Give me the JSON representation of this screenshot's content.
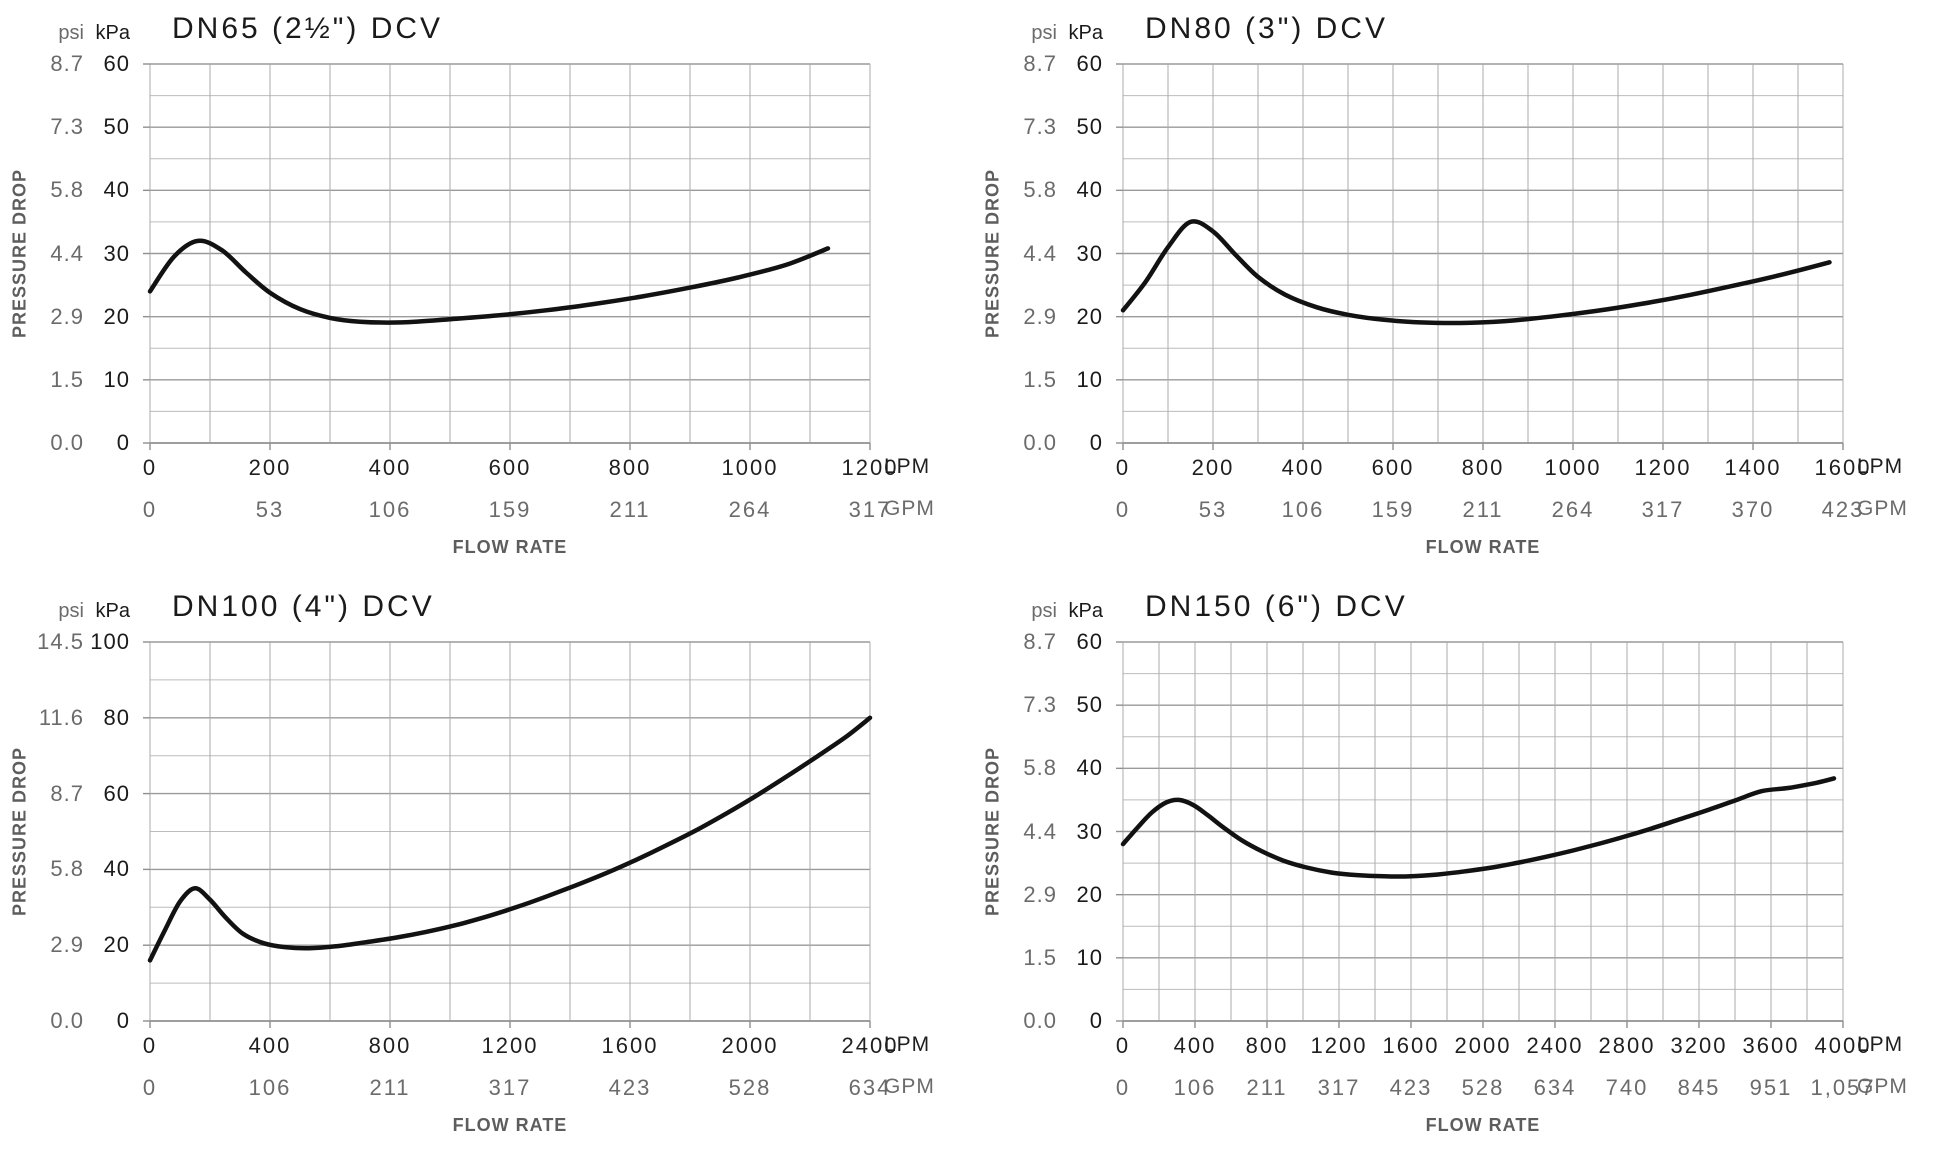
{
  "labels": {
    "psi_header": "psi",
    "kpa_header": "kPa",
    "lpm_unit": "LPM",
    "gpm_unit": "GPM",
    "flow_rate": "FLOW RATE",
    "pressure_drop": "PRESSURE DROP"
  },
  "colors": {
    "background": "#ffffff",
    "curve": "#121212",
    "grid_major": "#9a9a9a",
    "grid_minor": "#bcbcbc",
    "grid_vertical": "#ababab",
    "axis_line": "#8f8f8f",
    "text_dark": "#1a1a1a",
    "text_gray": "#6b6b6b"
  },
  "chart_data": [
    {
      "type": "line",
      "title": "DN65 (2½\") DCV",
      "xlabel": "FLOW RATE",
      "ylabel": "PRESSURE DROP",
      "y_axis": {
        "psi_ticks": [
          "8.7",
          "7.3",
          "5.8",
          "4.4",
          "2.9",
          "1.5",
          "0.0"
        ],
        "kpa_ticks": [
          "60",
          "50",
          "40",
          "30",
          "20",
          "10",
          "0"
        ],
        "kpa_max": 60,
        "kpa_major_step": 10,
        "kpa_minor_step": 5
      },
      "x_axis": {
        "lpm_ticks": [
          0,
          200,
          400,
          600,
          800,
          1000,
          1200
        ],
        "gpm_ticks": [
          "0",
          "53",
          "106",
          "159",
          "211",
          "264",
          "317"
        ],
        "lpm_max": 1200,
        "lpm_minor_step": 100
      },
      "series_lpm_kpa": [
        [
          0,
          24
        ],
        [
          40,
          29.5
        ],
        [
          80,
          32
        ],
        [
          120,
          30.5
        ],
        [
          160,
          27
        ],
        [
          200,
          23.8
        ],
        [
          250,
          21.2
        ],
        [
          300,
          19.8
        ],
        [
          350,
          19.2
        ],
        [
          420,
          19.1
        ],
        [
          500,
          19.6
        ],
        [
          580,
          20.2
        ],
        [
          660,
          21
        ],
        [
          740,
          22
        ],
        [
          820,
          23.2
        ],
        [
          900,
          24.6
        ],
        [
          980,
          26.2
        ],
        [
          1060,
          28.2
        ],
        [
          1130,
          30.8
        ]
      ]
    },
    {
      "type": "line",
      "title": "DN80 (3\") DCV",
      "xlabel": "FLOW RATE",
      "ylabel": "PRESSURE DROP",
      "y_axis": {
        "psi_ticks": [
          "8.7",
          "7.3",
          "5.8",
          "4.4",
          "2.9",
          "1.5",
          "0.0"
        ],
        "kpa_ticks": [
          "60",
          "50",
          "40",
          "30",
          "20",
          "10",
          "0"
        ],
        "kpa_max": 60,
        "kpa_major_step": 10,
        "kpa_minor_step": 5
      },
      "x_axis": {
        "lpm_ticks": [
          0,
          200,
          400,
          600,
          800,
          1000,
          1200,
          1400,
          1600
        ],
        "gpm_ticks": [
          "0",
          "53",
          "106",
          "159",
          "211",
          "264",
          "317",
          "370",
          "423"
        ],
        "lpm_max": 1600,
        "lpm_minor_step": 100
      },
      "series_lpm_kpa": [
        [
          0,
          21
        ],
        [
          50,
          25.5
        ],
        [
          100,
          31
        ],
        [
          150,
          35
        ],
        [
          200,
          33.5
        ],
        [
          250,
          29.8
        ],
        [
          300,
          26.3
        ],
        [
          360,
          23.5
        ],
        [
          430,
          21.5
        ],
        [
          500,
          20.3
        ],
        [
          580,
          19.5
        ],
        [
          660,
          19.1
        ],
        [
          750,
          19
        ],
        [
          850,
          19.3
        ],
        [
          950,
          20
        ],
        [
          1050,
          20.9
        ],
        [
          1150,
          22
        ],
        [
          1250,
          23.3
        ],
        [
          1350,
          24.8
        ],
        [
          1450,
          26.4
        ],
        [
          1570,
          28.6
        ]
      ]
    },
    {
      "type": "line",
      "title": "DN100 (4\") DCV",
      "xlabel": "FLOW RATE",
      "ylabel": "PRESSURE DROP",
      "y_axis": {
        "psi_ticks": [
          "14.5",
          "11.6",
          "8.7",
          "5.8",
          "2.9",
          "0.0"
        ],
        "kpa_ticks": [
          "100",
          "80",
          "60",
          "40",
          "20",
          "0"
        ],
        "kpa_max": 100,
        "kpa_major_step": 20,
        "kpa_minor_step": 10
      },
      "x_axis": {
        "lpm_ticks": [
          0,
          400,
          800,
          1200,
          1600,
          2000,
          2400
        ],
        "gpm_ticks": [
          "0",
          "106",
          "211",
          "317",
          "423",
          "528",
          "634"
        ],
        "lpm_max": 2400,
        "lpm_minor_step": 200
      },
      "series_lpm_kpa": [
        [
          0,
          16
        ],
        [
          50,
          24
        ],
        [
          100,
          31.5
        ],
        [
          150,
          35
        ],
        [
          200,
          32
        ],
        [
          250,
          27.5
        ],
        [
          310,
          23
        ],
        [
          380,
          20.5
        ],
        [
          450,
          19.5
        ],
        [
          530,
          19.2
        ],
        [
          620,
          19.7
        ],
        [
          720,
          20.8
        ],
        [
          820,
          22
        ],
        [
          920,
          23.5
        ],
        [
          1020,
          25.3
        ],
        [
          1120,
          27.5
        ],
        [
          1220,
          30
        ],
        [
          1320,
          32.8
        ],
        [
          1420,
          35.8
        ],
        [
          1520,
          39
        ],
        [
          1620,
          42.5
        ],
        [
          1720,
          46.3
        ],
        [
          1820,
          50.3
        ],
        [
          1920,
          54.7
        ],
        [
          2020,
          59.4
        ],
        [
          2120,
          64.4
        ],
        [
          2220,
          69.6
        ],
        [
          2320,
          75
        ],
        [
          2400,
          80
        ]
      ]
    },
    {
      "type": "line",
      "title": "DN150 (6\") DCV",
      "xlabel": "FLOW RATE",
      "ylabel": "PRESSURE DROP",
      "y_axis": {
        "psi_ticks": [
          "8.7",
          "7.3",
          "5.8",
          "4.4",
          "2.9",
          "1.5",
          "0.0"
        ],
        "kpa_ticks": [
          "60",
          "50",
          "40",
          "30",
          "20",
          "10",
          "0"
        ],
        "kpa_max": 60,
        "kpa_major_step": 10,
        "kpa_minor_step": 5
      },
      "x_axis": {
        "lpm_ticks": [
          0,
          400,
          800,
          1200,
          1600,
          2000,
          2400,
          2800,
          3200,
          3600,
          4000
        ],
        "gpm_ticks": [
          "0",
          "106",
          "211",
          "317",
          "423",
          "528",
          "634",
          "740",
          "845",
          "951",
          "1,057"
        ],
        "lpm_max": 4000,
        "lpm_minor_step": 200
      },
      "series_lpm_kpa": [
        [
          0,
          28
        ],
        [
          80,
          30.6
        ],
        [
          160,
          33
        ],
        [
          240,
          34.6
        ],
        [
          310,
          35
        ],
        [
          390,
          34.2
        ],
        [
          470,
          32.6
        ],
        [
          560,
          30.6
        ],
        [
          660,
          28.6
        ],
        [
          770,
          26.9
        ],
        [
          890,
          25.4
        ],
        [
          1020,
          24.3
        ],
        [
          1160,
          23.5
        ],
        [
          1300,
          23.1
        ],
        [
          1450,
          22.9
        ],
        [
          1600,
          22.9
        ],
        [
          1750,
          23.2
        ],
        [
          1900,
          23.7
        ],
        [
          2050,
          24.3
        ],
        [
          2200,
          25.1
        ],
        [
          2350,
          26
        ],
        [
          2500,
          27
        ],
        [
          2650,
          28.1
        ],
        [
          2800,
          29.3
        ],
        [
          2950,
          30.6
        ],
        [
          3100,
          32
        ],
        [
          3250,
          33.4
        ],
        [
          3400,
          34.9
        ],
        [
          3550,
          36.4
        ],
        [
          3700,
          36.9
        ],
        [
          3850,
          37.7
        ],
        [
          3950,
          38.4
        ]
      ]
    }
  ]
}
